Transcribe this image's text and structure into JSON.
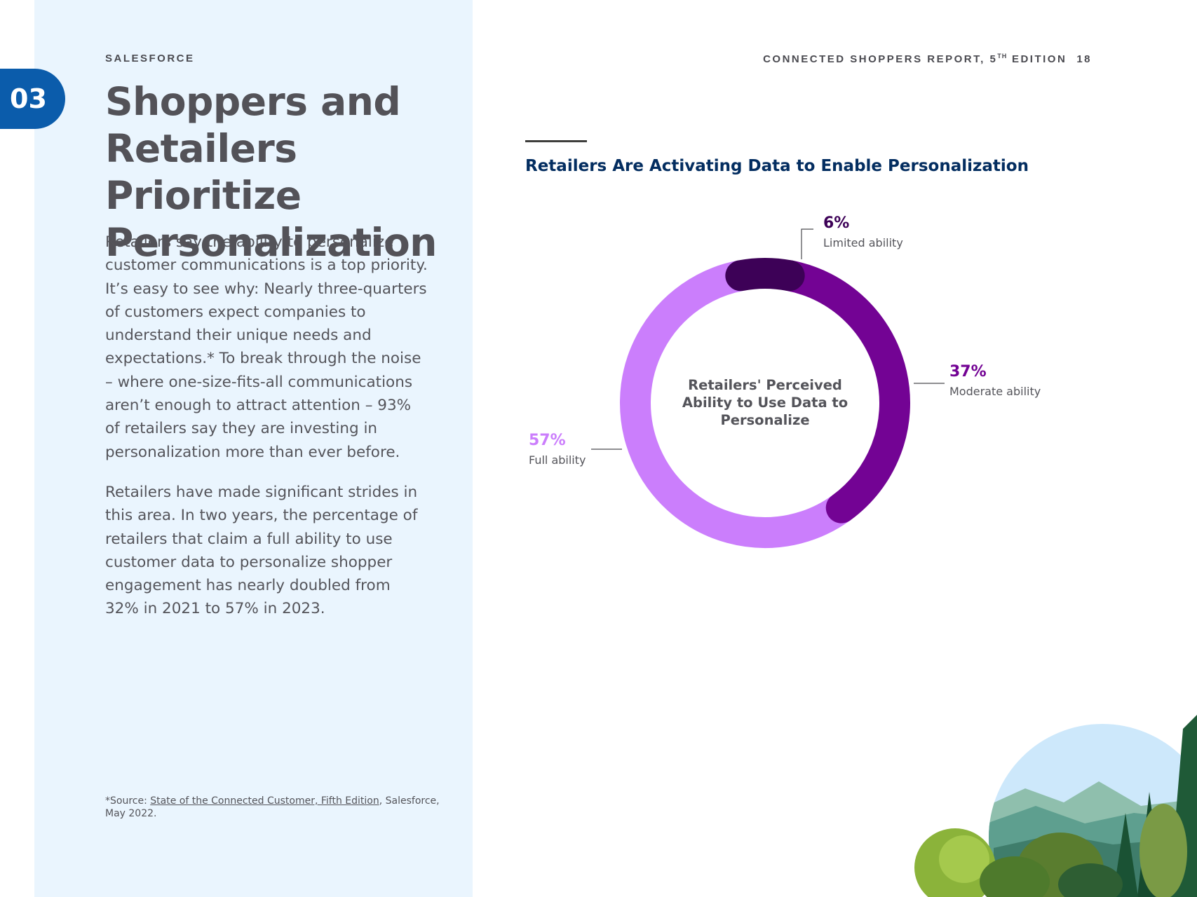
{
  "header": {
    "brand": "SALESFORCE",
    "report_title": "CONNECTED SHOPPERS REPORT, 5",
    "report_sup": "TH",
    "report_suffix": " EDITION",
    "page_number": "18"
  },
  "section": {
    "number": "03"
  },
  "page_title": "Shoppers and Retailers Prioritize Personalization",
  "body": {
    "p1": "Retailers say the ability to personalize customer communications is a top priority. It’s easy to see why: Nearly three-quarters of customers expect companies to understand their unique needs and expectations.* To break through the noise – where one-size-fits-all communications aren’t enough to attract attention – 93% of retailers say they are investing in personalization more than ever before.",
    "p2": "Retailers have made significant strides in this area. In two years, the percentage of retailers that claim a full ability to use customer data to personalize shopper engagement has nearly doubled from 32% in 2021 to 57% in 2023."
  },
  "footnote": {
    "prefix": "*Source: ",
    "link": "State of the Connected Customer, Fifth Edition",
    "suffix": ", Salesforce, May 2022."
  },
  "chart_data": {
    "type": "pie",
    "title": "Retailers Are Activating Data to Enable Personalization",
    "center_label": "Retailers' Perceived Ability to Use Data to Personalize",
    "slices": [
      {
        "label": "Limited ability",
        "value": 6,
        "value_label": "6%",
        "color": "#3d0157"
      },
      {
        "label": "Moderate ability",
        "value": 37,
        "value_label": "37%",
        "color": "#730394"
      },
      {
        "label": "Full ability",
        "value": 57,
        "value_label": "57%",
        "color": "#cb7efc"
      }
    ]
  },
  "colors": {
    "section_tab": "#0b5cab",
    "left_panel": "#eaf5fe",
    "chart_title": "#032d60"
  },
  "decorations": {
    "illustration": "landscape-trees-mountain"
  }
}
